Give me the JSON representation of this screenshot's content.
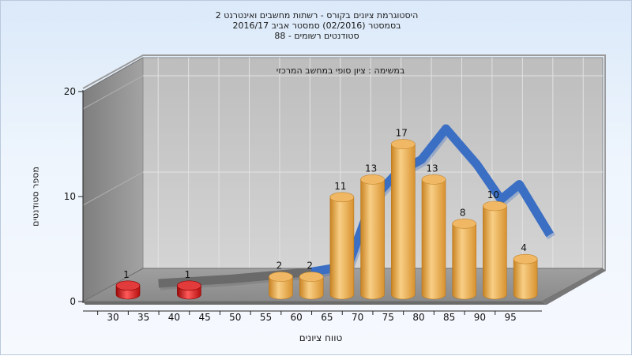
{
  "chart_data": {
    "type": "bar",
    "title_lines": [
      "היסטוגרמת ציונים בקורס - רשתות מחשבים ואינטרנט 2",
      "בסמסטר  (02/2016)  סמסטר אביב 2016/17",
      "סטודנטים רשומים - 88"
    ],
    "annotation": "במשימה : ציון סופי במחשב המרכזי",
    "xlabel": "טווח ציונים",
    "ylabel": "מספר סטודנטים",
    "ylim": [
      0,
      20
    ],
    "y_ticks": [
      "0",
      "10",
      "20"
    ],
    "x_ticks": [
      "30",
      "35",
      "40",
      "45",
      "50",
      "55",
      "60",
      "65",
      "70",
      "75",
      "80",
      "85",
      "90",
      "95"
    ],
    "bars": [
      {
        "tick_index": 0,
        "value": 1,
        "label": "1",
        "color": "red"
      },
      {
        "tick_index": 2,
        "value": 1,
        "label": "1",
        "color": "red"
      },
      {
        "tick_index": 5,
        "value": 2,
        "label": "2",
        "color": "orange"
      },
      {
        "tick_index": 6,
        "value": 2,
        "label": "2",
        "color": "orange"
      },
      {
        "tick_index": 7,
        "value": 11,
        "label": "11",
        "color": "orange"
      },
      {
        "tick_index": 8,
        "value": 13,
        "label": "13",
        "color": "orange"
      },
      {
        "tick_index": 9,
        "value": 17,
        "label": "17",
        "color": "orange"
      },
      {
        "tick_index": 10,
        "value": 13,
        "label": "13",
        "color": "orange"
      },
      {
        "tick_index": 11,
        "value": 8,
        "label": "8",
        "color": "orange"
      },
      {
        "tick_index": 12,
        "value": 10,
        "label": "10",
        "color": "orange"
      },
      {
        "tick_index": 13,
        "value": 4,
        "label": "4",
        "color": "orange"
      }
    ],
    "trend_line": {
      "color": "#3b6fc4",
      "points": [
        {
          "x": 35,
          "y": 0
        },
        {
          "x": 47,
          "y": 0.5
        },
        {
          "x": 60,
          "y": 1.3
        },
        {
          "x": 66,
          "y": 2
        },
        {
          "x": 70,
          "y": 9.5
        },
        {
          "x": 74,
          "y": 12.5
        },
        {
          "x": 78,
          "y": 14
        },
        {
          "x": 82,
          "y": 17.5
        },
        {
          "x": 87,
          "y": 13.5
        },
        {
          "x": 91,
          "y": 9.5
        },
        {
          "x": 94,
          "y": 11.2
        },
        {
          "x": 99,
          "y": 5.5
        }
      ],
      "grey_until_x": 64
    },
    "colors": {
      "orange": "#e4a244",
      "red": "#d41c1c",
      "wall_left": "#8c8c8c",
      "wall_back": "#c7c7c7",
      "floor": "#9a9a9a"
    },
    "grid": true
  }
}
